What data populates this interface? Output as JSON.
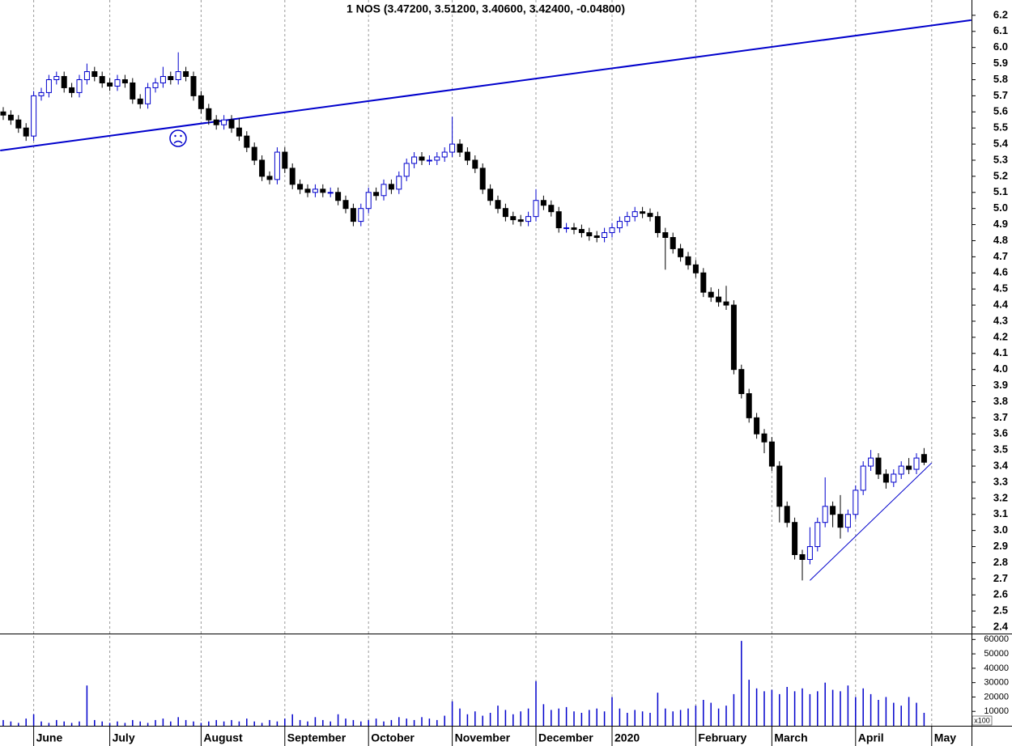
{
  "chart_data": {
    "type": "candlestick",
    "title": "1 NOS (3.47200, 3.51200, 3.40600, 3.42400, -0.04800)",
    "categories": [
      null,
      null,
      null,
      null,
      "June",
      null,
      null,
      null,
      null,
      null,
      null,
      null,
      null,
      null,
      "July",
      null,
      null,
      null,
      null,
      null,
      null,
      null,
      null,
      null,
      null,
      null,
      "August",
      null,
      null,
      null,
      null,
      null,
      null,
      null,
      null,
      null,
      null,
      "September",
      null,
      null,
      null,
      null,
      null,
      null,
      null,
      null,
      null,
      null,
      "October",
      null,
      null,
      null,
      null,
      null,
      null,
      null,
      null,
      null,
      null,
      "November",
      null,
      null,
      null,
      null,
      null,
      null,
      null,
      null,
      null,
      null,
      "December",
      null,
      null,
      null,
      null,
      null,
      null,
      null,
      null,
      null,
      "2020",
      null,
      null,
      null,
      null,
      null,
      null,
      null,
      null,
      null,
      null,
      "February",
      null,
      null,
      null,
      null,
      null,
      null,
      null,
      null,
      null,
      "March",
      null,
      null,
      null,
      null,
      null,
      null,
      null,
      null,
      null,
      null,
      "April",
      null,
      null,
      null,
      null,
      null,
      null,
      null,
      null,
      null,
      "May"
    ],
    "open": [
      5.6,
      5.58,
      5.55,
      5.5,
      5.45,
      5.7,
      5.72,
      5.8,
      5.82,
      5.75,
      5.72,
      5.8,
      5.85,
      5.82,
      5.78,
      5.76,
      5.8,
      5.78,
      5.68,
      5.65,
      5.75,
      5.78,
      5.82,
      5.8,
      5.85,
      5.82,
      5.7,
      5.62,
      5.55,
      5.52,
      5.55,
      5.5,
      5.45,
      5.38,
      5.3,
      5.2,
      5.18,
      5.35,
      5.25,
      5.15,
      5.12,
      5.1,
      5.12,
      5.1,
      5.1,
      5.05,
      5,
      4.92,
      5,
      5.1,
      5.08,
      5.15,
      5.12,
      5.2,
      5.28,
      5.32,
      5.3,
      5.3,
      5.32,
      5.35,
      5.4,
      5.35,
      5.3,
      5.25,
      5.12,
      5.05,
      5,
      4.95,
      4.93,
      4.92,
      4.95,
      5.05,
      5.02,
      4.98,
      4.88,
      4.88,
      4.87,
      4.85,
      4.83,
      4.82,
      4.85,
      4.88,
      4.92,
      4.95,
      4.98,
      4.97,
      4.95,
      4.85,
      4.82,
      4.75,
      4.7,
      4.65,
      4.6,
      4.48,
      4.45,
      4.42,
      4.4,
      4,
      3.85,
      3.7,
      3.6,
      3.55,
      3.4,
      3.15,
      3.05,
      2.85,
      2.82,
      2.9,
      3.05,
      3.15,
      3.1,
      3.02,
      3.1,
      3.25,
      3.4,
      3.45,
      3.35,
      3.3,
      3.35,
      3.4,
      3.38,
      3.472,
      null
    ],
    "high": [
      5.63,
      5.61,
      5.58,
      5.53,
      5.73,
      5.75,
      5.83,
      5.85,
      5.85,
      5.78,
      5.83,
      5.9,
      5.88,
      5.85,
      5.81,
      5.83,
      5.83,
      5.81,
      5.71,
      5.78,
      5.81,
      5.88,
      5.85,
      5.97,
      5.88,
      5.85,
      5.73,
      5.65,
      5.58,
      5.58,
      5.58,
      5.56,
      5.48,
      5.41,
      5.33,
      5.23,
      5.38,
      5.38,
      5.28,
      5.18,
      5.15,
      5.15,
      5.15,
      5.13,
      5.13,
      5.08,
      5.03,
      5.03,
      5.13,
      5.13,
      5.18,
      5.18,
      5.23,
      5.31,
      5.35,
      5.35,
      5.33,
      5.35,
      5.38,
      5.57,
      5.43,
      5.38,
      5.33,
      5.28,
      5.15,
      5.08,
      5.03,
      4.98,
      4.96,
      4.98,
      5.12,
      5.08,
      5.05,
      5.01,
      4.91,
      4.91,
      4.9,
      4.88,
      4.86,
      4.88,
      4.91,
      4.95,
      4.98,
      5.01,
      5.01,
      5,
      4.98,
      4.88,
      4.85,
      4.78,
      4.73,
      4.68,
      4.63,
      4.51,
      4.5,
      4.52,
      4.43,
      4.03,
      3.88,
      3.73,
      3.63,
      3.58,
      3.43,
      3.18,
      3.08,
      2.88,
      3.02,
      3.08,
      3.33,
      3.18,
      3.22,
      3.13,
      3.28,
      3.43,
      3.5,
      3.48,
      3.38,
      3.38,
      3.43,
      3.45,
      3.48,
      3.512,
      null
    ],
    "low": [
      5.55,
      5.52,
      5.47,
      5.42,
      5.42,
      5.67,
      5.69,
      5.77,
      5.72,
      5.69,
      5.69,
      5.77,
      5.79,
      5.75,
      5.73,
      5.73,
      5.75,
      5.65,
      5.62,
      5.62,
      5.72,
      5.75,
      5.77,
      5.77,
      5.79,
      5.67,
      5.59,
      5.52,
      5.49,
      5.49,
      5.47,
      5.42,
      5.35,
      5.27,
      5.17,
      5.15,
      5.15,
      5.22,
      5.12,
      5.09,
      5.07,
      5.07,
      5.07,
      5.07,
      5.02,
      4.97,
      4.89,
      4.89,
      4.97,
      5.05,
      5.05,
      5.09,
      5.09,
      5.17,
      5.25,
      5.27,
      5.27,
      5.27,
      5.29,
      5.32,
      5.32,
      5.27,
      5.22,
      5.09,
      5.02,
      4.97,
      4.92,
      4.9,
      4.89,
      4.89,
      4.92,
      4.99,
      4.95,
      4.85,
      4.85,
      4.84,
      4.82,
      4.8,
      4.79,
      4.79,
      4.82,
      4.85,
      4.89,
      4.92,
      4.94,
      4.92,
      4.82,
      4.62,
      4.72,
      4.67,
      4.62,
      4.57,
      4.45,
      4.42,
      4.39,
      4.37,
      3.97,
      3.82,
      3.67,
      3.57,
      3.48,
      3.37,
      3.05,
      3.02,
      2.82,
      2.69,
      2.79,
      2.87,
      3.02,
      3.02,
      2.95,
      2.99,
      3.07,
      3.22,
      3.37,
      3.32,
      3.26,
      3.27,
      3.32,
      3.35,
      3.35,
      3.406,
      null
    ],
    "close": [
      5.58,
      5.55,
      5.5,
      5.45,
      5.7,
      5.72,
      5.8,
      5.82,
      5.75,
      5.72,
      5.8,
      5.85,
      5.82,
      5.78,
      5.76,
      5.8,
      5.78,
      5.68,
      5.65,
      5.75,
      5.78,
      5.82,
      5.8,
      5.85,
      5.82,
      5.7,
      5.62,
      5.55,
      5.52,
      5.55,
      5.5,
      5.45,
      5.38,
      5.3,
      5.2,
      5.18,
      5.35,
      5.25,
      5.15,
      5.12,
      5.1,
      5.12,
      5.1,
      5.1,
      5.05,
      5,
      4.92,
      5,
      5.1,
      5.08,
      5.15,
      5.12,
      5.2,
      5.28,
      5.32,
      5.3,
      5.3,
      5.32,
      5.35,
      5.4,
      5.35,
      5.3,
      5.25,
      5.12,
      5.05,
      5,
      4.95,
      4.93,
      4.92,
      4.95,
      5.05,
      5.02,
      4.98,
      4.88,
      4.88,
      4.87,
      4.85,
      4.83,
      4.82,
      4.85,
      4.88,
      4.92,
      4.95,
      4.98,
      4.97,
      4.95,
      4.85,
      4.82,
      4.75,
      4.7,
      4.65,
      4.6,
      4.48,
      4.45,
      4.42,
      4.4,
      4,
      3.85,
      3.7,
      3.6,
      3.55,
      3.4,
      3.15,
      3.05,
      2.85,
      2.82,
      2.9,
      3.05,
      3.15,
      3.1,
      3.02,
      3.1,
      3.25,
      3.4,
      3.45,
      3.35,
      3.3,
      3.35,
      3.4,
      3.38,
      3.45,
      3.424,
      null
    ],
    "volume": [
      4000,
      3000,
      2000,
      5000,
      8000,
      3000,
      2000,
      4000,
      3000,
      2000,
      3000,
      28000,
      4000,
      3000,
      2000,
      3000,
      2000,
      4000,
      3000,
      2000,
      4000,
      5000,
      3000,
      6000,
      4000,
      3000,
      2000,
      3000,
      4000,
      3000,
      4000,
      3000,
      5000,
      3000,
      2000,
      4000,
      3000,
      5000,
      8000,
      4000,
      3000,
      6000,
      4000,
      3000,
      8000,
      5000,
      4000,
      3000,
      4000,
      5000,
      3000,
      4000,
      6000,
      5000,
      4000,
      6000,
      5000,
      4000,
      7000,
      17000,
      12000,
      8000,
      10000,
      7000,
      9000,
      14000,
      11000,
      8000,
      10000,
      12000,
      31000,
      15000,
      11000,
      12000,
      13000,
      10000,
      9000,
      11000,
      12000,
      10000,
      20000,
      12000,
      9000,
      11000,
      10000,
      9000,
      23000,
      12000,
      10000,
      11000,
      12000,
      14000,
      18000,
      16000,
      12000,
      14000,
      22000,
      59000,
      32000,
      26000,
      24000,
      25000,
      22000,
      27000,
      24000,
      26000,
      22000,
      24000,
      30000,
      25000,
      24000,
      28000,
      20000,
      26000,
      22000,
      18000,
      20000,
      16000,
      14000,
      20000,
      16000,
      9000,
      null
    ],
    "up_color": "#0000cc",
    "down_color": "#000000",
    "volume_color": "#0000cc",
    "ylim": [
      2.36,
      6.295
    ],
    "yticks": [
      2.4,
      2.5,
      2.6,
      2.7,
      2.8,
      2.9,
      {
        "value": 3,
        "label": "3.0"
      },
      3.1,
      3.2,
      3.3,
      3.4,
      3.5,
      3.6,
      3.7,
      3.8,
      3.9,
      {
        "value": 4,
        "label": "4.0"
      },
      4.1,
      4.2,
      4.3,
      4.4,
      4.5,
      4.6,
      4.7,
      4.8,
      4.9,
      {
        "value": 5,
        "label": "5.0"
      },
      5.1,
      5.2,
      5.3,
      5.4,
      5.5,
      5.6,
      5.7,
      5.8,
      5.9,
      {
        "value": 6,
        "label": "6.0"
      },
      6.1,
      6.2
    ],
    "volume_ylim": [
      0,
      63000
    ],
    "volume_yticks": [
      10000,
      20000,
      30000,
      40000,
      50000,
      60000
    ],
    "volume_unit": "x100",
    "trendlines": [
      {
        "x": [
          -0.4,
          127.2
        ],
        "values": [
          5.36,
          6.17
        ],
        "color": "#0000cc",
        "width": 2
      },
      {
        "x": [
          106,
          122
        ],
        "values": [
          2.69,
          3.42
        ],
        "color": "#0000cc",
        "width": 1
      }
    ]
  }
}
